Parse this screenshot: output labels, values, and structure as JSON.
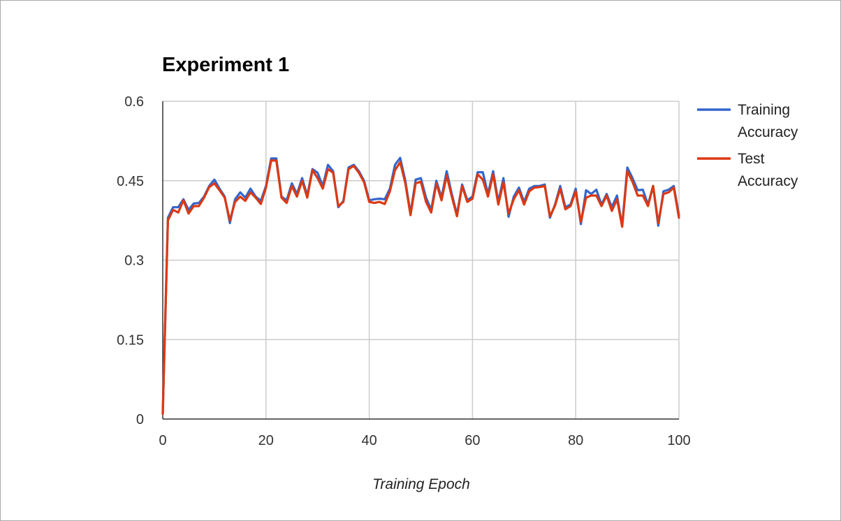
{
  "chart_data": {
    "type": "line",
    "title": "Experiment 1",
    "xlabel": "Training Epoch",
    "ylabel": "",
    "xlim": [
      0,
      100
    ],
    "ylim": [
      0,
      0.6
    ],
    "xticks": [
      0,
      20,
      40,
      60,
      80,
      100
    ],
    "xtick_labels": [
      "0",
      "20",
      "40",
      "60",
      "80",
      "100"
    ],
    "yticks": [
      0,
      0.15,
      0.3,
      0.45,
      0.6
    ],
    "ytick_labels": [
      "0",
      "0.15",
      "0.3",
      "0.45",
      "0.6"
    ],
    "grid": true,
    "legend_position": "right",
    "x": [
      0,
      1,
      2,
      3,
      4,
      5,
      6,
      7,
      8,
      9,
      10,
      11,
      12,
      13,
      14,
      15,
      16,
      17,
      18,
      19,
      20,
      21,
      22,
      23,
      24,
      25,
      26,
      27,
      28,
      29,
      30,
      31,
      32,
      33,
      34,
      35,
      36,
      37,
      38,
      39,
      40,
      41,
      42,
      43,
      44,
      45,
      46,
      47,
      48,
      49,
      50,
      51,
      52,
      53,
      54,
      55,
      56,
      57,
      58,
      59,
      60,
      61,
      62,
      63,
      64,
      65,
      66,
      67,
      68,
      69,
      70,
      71,
      72,
      73,
      74,
      75,
      76,
      77,
      78,
      79,
      80,
      81,
      82,
      83,
      84,
      85,
      86,
      87,
      88,
      89,
      90,
      91,
      92,
      93,
      94,
      95,
      96,
      97,
      98,
      99,
      100
    ],
    "series": [
      {
        "name": "Training Accuracy",
        "color": "#3366cc",
        "values": [
          0.01,
          0.38,
          0.4,
          0.4,
          0.415,
          0.395,
          0.407,
          0.408,
          0.42,
          0.44,
          0.452,
          0.435,
          0.42,
          0.37,
          0.415,
          0.428,
          0.418,
          0.435,
          0.42,
          0.412,
          0.44,
          0.492,
          0.492,
          0.42,
          0.413,
          0.445,
          0.425,
          0.455,
          0.422,
          0.472,
          0.465,
          0.44,
          0.48,
          0.468,
          0.4,
          0.412,
          0.475,
          0.48,
          0.468,
          0.45,
          0.413,
          0.415,
          0.416,
          0.415,
          0.435,
          0.48,
          0.493,
          0.45,
          0.388,
          0.452,
          0.455,
          0.418,
          0.395,
          0.45,
          0.418,
          0.468,
          0.425,
          0.386,
          0.443,
          0.413,
          0.42,
          0.466,
          0.466,
          0.425,
          0.468,
          0.41,
          0.455,
          0.382,
          0.42,
          0.437,
          0.41,
          0.435,
          0.44,
          0.44,
          0.443,
          0.38,
          0.405,
          0.44,
          0.4,
          0.405,
          0.435,
          0.368,
          0.432,
          0.425,
          0.433,
          0.405,
          0.425,
          0.4,
          0.422,
          0.365,
          0.475,
          0.455,
          0.432,
          0.433,
          0.405,
          0.44,
          0.365,
          0.43,
          0.433,
          0.44,
          0.385
        ]
      },
      {
        "name": "Test Accuracy",
        "color": "#dc3912",
        "values": [
          0.01,
          0.375,
          0.395,
          0.39,
          0.413,
          0.388,
          0.402,
          0.402,
          0.418,
          0.438,
          0.445,
          0.432,
          0.418,
          0.375,
          0.41,
          0.42,
          0.412,
          0.428,
          0.418,
          0.406,
          0.437,
          0.488,
          0.488,
          0.418,
          0.408,
          0.44,
          0.42,
          0.45,
          0.418,
          0.47,
          0.455,
          0.435,
          0.472,
          0.465,
          0.402,
          0.41,
          0.472,
          0.478,
          0.465,
          0.447,
          0.41,
          0.408,
          0.41,
          0.406,
          0.43,
          0.47,
          0.485,
          0.445,
          0.385,
          0.445,
          0.448,
          0.41,
          0.39,
          0.445,
          0.413,
          0.46,
          0.42,
          0.383,
          0.44,
          0.41,
          0.416,
          0.462,
          0.452,
          0.42,
          0.462,
          0.405,
          0.447,
          0.388,
          0.415,
          0.432,
          0.405,
          0.43,
          0.437,
          0.438,
          0.44,
          0.383,
          0.403,
          0.435,
          0.396,
          0.402,
          0.43,
          0.372,
          0.418,
          0.422,
          0.422,
          0.402,
          0.422,
          0.393,
          0.415,
          0.363,
          0.468,
          0.448,
          0.422,
          0.422,
          0.402,
          0.44,
          0.37,
          0.425,
          0.428,
          0.437,
          0.38
        ]
      }
    ]
  }
}
